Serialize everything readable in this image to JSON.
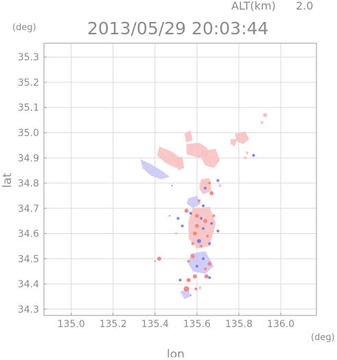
{
  "chart_data": {
    "type": "scatter",
    "title": "2013/05/29 20:03:44",
    "altitude_label": "ALT(km)",
    "altitude_value": "2.0",
    "xlabel": "lon",
    "ylabel": "lat",
    "x_unit": "(deg)",
    "y_unit": "(deg)",
    "xlim": [
      134.87,
      136.17
    ],
    "ylim": [
      34.275,
      35.355
    ],
    "x_ticks": [
      135.0,
      135.2,
      135.4,
      135.6,
      135.8,
      136.0
    ],
    "x_tick_labels": [
      "135.0",
      "135.2",
      "135.4",
      "135.6",
      "135.8",
      "136.0"
    ],
    "y_ticks": [
      34.3,
      34.4,
      34.5,
      34.6,
      34.7,
      34.8,
      34.9,
      35.0,
      35.1,
      35.2,
      35.3
    ],
    "y_tick_labels": [
      "34.3",
      "34.4",
      "34.5",
      "34.6",
      "34.7",
      "34.8",
      "34.9",
      "35.0",
      "35.1",
      "35.2",
      "35.3"
    ],
    "grid": true,
    "colors": {
      "frame": "#999999",
      "grid": "#d9d9d9",
      "red_strong": "#f28a8a",
      "red_light": "#f7c2c2",
      "blue_strong": "#7e7ef2",
      "blue_light": "#c9c9f7"
    },
    "regions": [
      {
        "class": "blue_light",
        "points": [
          [
            135.33,
            34.895
          ],
          [
            135.38,
            34.875
          ],
          [
            135.44,
            34.845
          ],
          [
            135.47,
            34.825
          ],
          [
            135.43,
            34.815
          ],
          [
            135.38,
            34.83
          ],
          [
            135.34,
            34.86
          ]
        ]
      },
      {
        "class": "red_light",
        "points": [
          [
            135.42,
            34.945
          ],
          [
            135.48,
            34.925
          ],
          [
            135.52,
            34.9
          ],
          [
            135.53,
            34.87
          ],
          [
            135.5,
            34.86
          ],
          [
            135.45,
            34.88
          ],
          [
            135.41,
            34.91
          ]
        ]
      },
      {
        "class": "red_light",
        "points": [
          [
            135.55,
            34.955
          ],
          [
            135.61,
            34.96
          ],
          [
            135.65,
            34.94
          ],
          [
            135.65,
            34.91
          ],
          [
            135.61,
            34.9
          ],
          [
            135.55,
            34.915
          ]
        ]
      },
      {
        "class": "red_light",
        "points": [
          [
            135.625,
            34.93
          ],
          [
            135.69,
            34.935
          ],
          [
            135.71,
            34.89
          ],
          [
            135.68,
            34.86
          ],
          [
            135.64,
            34.87
          ],
          [
            135.62,
            34.9
          ]
        ]
      },
      {
        "class": "red_light",
        "points": [
          [
            135.54,
            34.995
          ],
          [
            135.57,
            35.01
          ],
          [
            135.58,
            34.97
          ],
          [
            135.55,
            34.96
          ]
        ]
      },
      {
        "class": "red_light",
        "points": [
          [
            135.78,
            34.995
          ],
          [
            135.83,
            35.005
          ],
          [
            135.85,
            34.975
          ],
          [
            135.82,
            34.955
          ],
          [
            135.79,
            34.965
          ]
        ]
      },
      {
        "class": "red_light",
        "points": [
          [
            135.76,
            34.975
          ],
          [
            135.79,
            34.975
          ],
          [
            135.78,
            34.945
          ],
          [
            135.76,
            34.955
          ]
        ]
      },
      {
        "class": "red_light",
        "points": [
          [
            135.5,
            34.9
          ],
          [
            135.53,
            34.905
          ],
          [
            135.54,
            34.86
          ],
          [
            135.51,
            34.85
          ]
        ]
      },
      {
        "class": "red_light",
        "points": [
          [
            135.62,
            34.815
          ],
          [
            135.66,
            34.82
          ],
          [
            135.67,
            34.77
          ],
          [
            135.63,
            34.755
          ],
          [
            135.61,
            34.78
          ]
        ]
      },
      {
        "class": "blue_light",
        "points": [
          [
            135.56,
            34.74
          ],
          [
            135.6,
            34.75
          ],
          [
            135.62,
            34.72
          ],
          [
            135.58,
            34.7
          ],
          [
            135.55,
            34.72
          ]
        ]
      },
      {
        "class": "red_light",
        "points": [
          [
            135.58,
            34.7
          ],
          [
            135.66,
            34.705
          ],
          [
            135.69,
            34.64
          ],
          [
            135.66,
            34.55
          ],
          [
            135.6,
            34.54
          ],
          [
            135.56,
            34.58
          ],
          [
            135.56,
            34.65
          ]
        ]
      },
      {
        "class": "blue_light",
        "points": [
          [
            135.57,
            34.52
          ],
          [
            135.64,
            34.53
          ],
          [
            135.68,
            34.47
          ],
          [
            135.64,
            34.44
          ],
          [
            135.58,
            34.45
          ],
          [
            135.56,
            34.48
          ]
        ]
      },
      {
        "class": "blue_light",
        "points": [
          [
            135.52,
            34.37
          ],
          [
            135.56,
            34.38
          ],
          [
            135.57,
            34.35
          ],
          [
            135.54,
            34.34
          ]
        ]
      }
    ],
    "points": [
      {
        "x": 135.925,
        "y": 35.07,
        "r": 3,
        "class": "red_light"
      },
      {
        "x": 135.91,
        "y": 35.04,
        "r": 2,
        "class": "red_light"
      },
      {
        "x": 135.87,
        "y": 34.91,
        "r": 2,
        "class": "blue_strong"
      },
      {
        "x": 135.84,
        "y": 34.92,
        "r": 2,
        "class": "red_light"
      },
      {
        "x": 135.83,
        "y": 34.9,
        "r": 2,
        "class": "red_light"
      },
      {
        "x": 135.7,
        "y": 34.81,
        "r": 2,
        "class": "blue_strong"
      },
      {
        "x": 135.71,
        "y": 34.79,
        "r": 2,
        "class": "red_light"
      },
      {
        "x": 135.67,
        "y": 34.76,
        "r": 3,
        "class": "red_strong"
      },
      {
        "x": 135.64,
        "y": 34.78,
        "r": 2,
        "class": "blue_strong"
      },
      {
        "x": 135.66,
        "y": 34.8,
        "r": 2,
        "class": "red_strong"
      },
      {
        "x": 135.55,
        "y": 34.69,
        "r": 3,
        "class": "red_strong"
      },
      {
        "x": 135.57,
        "y": 34.68,
        "r": 2,
        "class": "blue_strong"
      },
      {
        "x": 135.6,
        "y": 34.67,
        "r": 3,
        "class": "red_strong"
      },
      {
        "x": 135.62,
        "y": 34.66,
        "r": 2,
        "class": "blue_strong"
      },
      {
        "x": 135.64,
        "y": 34.65,
        "r": 3,
        "class": "red_strong"
      },
      {
        "x": 135.67,
        "y": 34.64,
        "r": 2,
        "class": "blue_strong"
      },
      {
        "x": 135.6,
        "y": 34.63,
        "r": 3,
        "class": "red_strong"
      },
      {
        "x": 135.63,
        "y": 34.62,
        "r": 2,
        "class": "blue_strong"
      },
      {
        "x": 135.59,
        "y": 34.6,
        "r": 3,
        "class": "red_strong"
      },
      {
        "x": 135.65,
        "y": 34.59,
        "r": 2,
        "class": "red_strong"
      },
      {
        "x": 135.61,
        "y": 34.57,
        "r": 3,
        "class": "blue_strong"
      },
      {
        "x": 135.58,
        "y": 34.56,
        "r": 2,
        "class": "red_strong"
      },
      {
        "x": 135.62,
        "y": 34.55,
        "r": 2,
        "class": "red_strong"
      },
      {
        "x": 135.66,
        "y": 34.56,
        "r": 2,
        "class": "blue_strong"
      },
      {
        "x": 135.53,
        "y": 34.63,
        "r": 2,
        "class": "blue_strong"
      },
      {
        "x": 135.51,
        "y": 34.66,
        "r": 2,
        "class": "blue_strong"
      },
      {
        "x": 135.47,
        "y": 34.67,
        "r": 1,
        "class": "blue_strong"
      },
      {
        "x": 135.7,
        "y": 34.61,
        "r": 2,
        "class": "blue_strong"
      },
      {
        "x": 135.68,
        "y": 34.67,
        "r": 2,
        "class": "red_strong"
      },
      {
        "x": 135.58,
        "y": 34.51,
        "r": 3,
        "class": "red_strong"
      },
      {
        "x": 135.63,
        "y": 34.5,
        "r": 2,
        "class": "blue_strong"
      },
      {
        "x": 135.66,
        "y": 34.48,
        "r": 3,
        "class": "red_strong"
      },
      {
        "x": 135.6,
        "y": 34.47,
        "r": 2,
        "class": "blue_strong"
      },
      {
        "x": 135.64,
        "y": 34.46,
        "r": 2,
        "class": "red_strong"
      },
      {
        "x": 135.56,
        "y": 34.49,
        "r": 2,
        "class": "red_strong"
      },
      {
        "x": 135.42,
        "y": 34.5,
        "r": 3,
        "class": "red_strong"
      },
      {
        "x": 135.4,
        "y": 34.49,
        "r": 1,
        "class": "blue_strong"
      },
      {
        "x": 135.59,
        "y": 34.43,
        "r": 3,
        "class": "red_strong"
      },
      {
        "x": 135.56,
        "y": 34.415,
        "r": 3,
        "class": "red_strong"
      },
      {
        "x": 135.52,
        "y": 34.415,
        "r": 2,
        "class": "blue_strong"
      },
      {
        "x": 135.645,
        "y": 34.43,
        "r": 3,
        "class": "red_strong"
      },
      {
        "x": 135.66,
        "y": 34.425,
        "r": 2,
        "class": "blue_strong"
      },
      {
        "x": 135.55,
        "y": 34.38,
        "r": 4,
        "class": "red_strong"
      },
      {
        "x": 135.595,
        "y": 34.38,
        "r": 2,
        "class": "red_strong"
      },
      {
        "x": 135.615,
        "y": 34.385,
        "r": 2,
        "class": "red_light"
      },
      {
        "x": 135.57,
        "y": 34.355,
        "r": 1,
        "class": "blue_strong"
      },
      {
        "x": 135.5,
        "y": 34.6,
        "r": 1,
        "class": "blue_strong"
      },
      {
        "x": 135.48,
        "y": 34.79,
        "r": 1,
        "class": "blue_strong"
      },
      {
        "x": 135.61,
        "y": 34.73,
        "r": 2,
        "class": "red_strong"
      },
      {
        "x": 135.63,
        "y": 34.71,
        "r": 2,
        "class": "blue_strong"
      }
    ]
  }
}
